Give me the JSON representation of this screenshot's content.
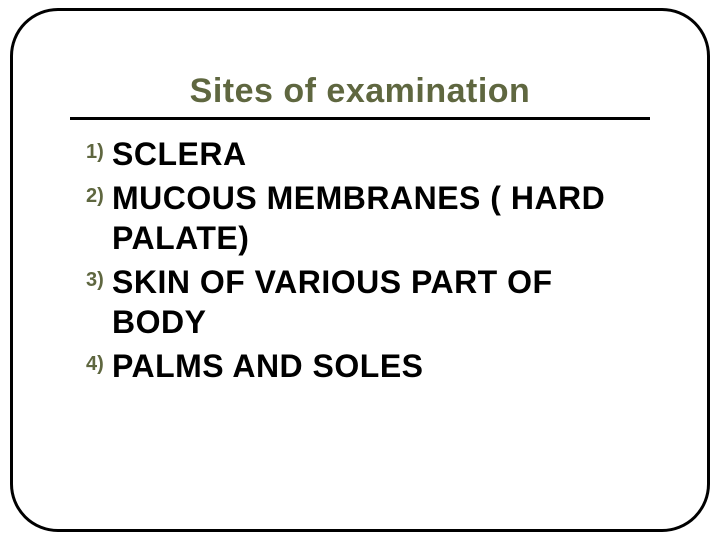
{
  "title": "Sites of examination",
  "title_color": "#5f6740",
  "number_color": "#5f6740",
  "text_color": "#000000",
  "border_color": "#000000",
  "background_color": "#ffffff",
  "title_fontsize": 34,
  "item_fontsize": 32,
  "number_fontsize": 20,
  "items": [
    {
      "n": "1)",
      "text": "SCLERA"
    },
    {
      "n": "2)",
      "text": "MUCOUS MEMBRANES ( HARD PALATE)"
    },
    {
      "n": "3)",
      "text": "SKIN OF VARIOUS PART OF BODY"
    },
    {
      "n": "4)",
      "text": "PALMS AND SOLES"
    }
  ]
}
